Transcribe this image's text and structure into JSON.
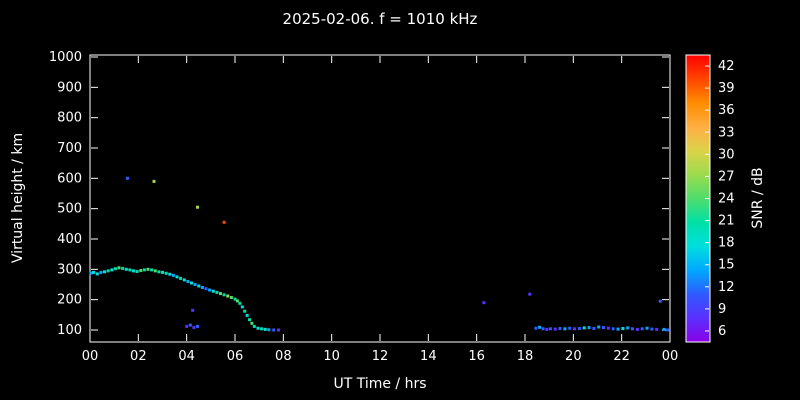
{
  "title": "2025-02-06. f = 1010 kHz",
  "chart_data": {
    "type": "scatter",
    "title": "2025-02-06. f = 1010 kHz",
    "xlabel": "UT Time / hrs",
    "ylabel": "Virtual height / km",
    "x_range_hours": [
      0,
      24
    ],
    "y_range_km": [
      100,
      1000
    ],
    "grid": false,
    "background": "#000000",
    "axis_color": "#ffffff",
    "x_tick_labels": [
      "00",
      "02",
      "04",
      "06",
      "08",
      "10",
      "12",
      "14",
      "16",
      "18",
      "20",
      "22",
      "00"
    ],
    "x_tick_values": [
      0,
      2,
      4,
      6,
      8,
      10,
      12,
      14,
      16,
      18,
      20,
      22,
      24
    ],
    "y_tick_values": [
      100,
      200,
      300,
      400,
      500,
      600,
      700,
      800,
      900,
      1000
    ],
    "colorbar": {
      "label": "SNR / dB",
      "tick_values": [
        42,
        39,
        36,
        33,
        30,
        27,
        24,
        21,
        18,
        15,
        12,
        9,
        6
      ],
      "range": [
        4.5,
        43.5
      ],
      "stops": [
        {
          "snr": 42,
          "color": "#ff0000"
        },
        {
          "snr": 39,
          "color": "#ff4500"
        },
        {
          "snr": 36,
          "color": "#ff8c00"
        },
        {
          "snr": 33,
          "color": "#ffae42"
        },
        {
          "snr": 30,
          "color": "#ddd24a"
        },
        {
          "snr": 27,
          "color": "#9bdb4d"
        },
        {
          "snr": 24,
          "color": "#4fdd6b"
        },
        {
          "snr": 21,
          "color": "#00e0a6"
        },
        {
          "snr": 18,
          "color": "#00dede"
        },
        {
          "snr": 15,
          "color": "#00a8ff"
        },
        {
          "snr": 12,
          "color": "#2f5bff"
        },
        {
          "snr": 9,
          "color": "#5a30ff"
        },
        {
          "snr": 6,
          "color": "#8a00e6"
        }
      ]
    },
    "points": [
      [
        0.05,
        288,
        15
      ],
      [
        0.15,
        290,
        18
      ],
      [
        0.3,
        285,
        18
      ],
      [
        0.45,
        290,
        15
      ],
      [
        0.6,
        292,
        18
      ],
      [
        0.75,
        295,
        21
      ],
      [
        0.9,
        298,
        18
      ],
      [
        1.05,
        302,
        21
      ],
      [
        1.2,
        305,
        24
      ],
      [
        1.35,
        303,
        21
      ],
      [
        1.5,
        300,
        18
      ],
      [
        1.55,
        600,
        12
      ],
      [
        1.65,
        298,
        21
      ],
      [
        1.8,
        295,
        18
      ],
      [
        1.95,
        293,
        21
      ],
      [
        2.1,
        296,
        24
      ],
      [
        2.25,
        298,
        21
      ],
      [
        2.4,
        300,
        24
      ],
      [
        2.55,
        298,
        21
      ],
      [
        2.65,
        590,
        27
      ],
      [
        2.7,
        295,
        24
      ],
      [
        2.85,
        292,
        21
      ],
      [
        3.0,
        290,
        18
      ],
      [
        3.15,
        287,
        21
      ],
      [
        3.3,
        284,
        18
      ],
      [
        3.45,
        280,
        15
      ],
      [
        3.6,
        275,
        18
      ],
      [
        3.75,
        270,
        21
      ],
      [
        3.9,
        265,
        18
      ],
      [
        4.05,
        260,
        15
      ],
      [
        4.2,
        255,
        18
      ],
      [
        4.35,
        250,
        15
      ],
      [
        4.45,
        505,
        27
      ],
      [
        4.5,
        245,
        18
      ],
      [
        4.65,
        240,
        15
      ],
      [
        4.8,
        236,
        12
      ],
      [
        4.95,
        232,
        15
      ],
      [
        5.1,
        228,
        18
      ],
      [
        5.25,
        224,
        21
      ],
      [
        5.4,
        220,
        24
      ],
      [
        5.55,
        455,
        39
      ],
      [
        5.55,
        216,
        21
      ],
      [
        5.7,
        212,
        27
      ],
      [
        5.85,
        207,
        24
      ],
      [
        6.0,
        202,
        21
      ],
      [
        6.1,
        196,
        24
      ],
      [
        6.2,
        188,
        21
      ],
      [
        6.3,
        176,
        18
      ],
      [
        6.4,
        162,
        21
      ],
      [
        6.5,
        148,
        18
      ],
      [
        6.6,
        134,
        21
      ],
      [
        6.7,
        122,
        24
      ],
      [
        6.8,
        112,
        21
      ],
      [
        6.95,
        106,
        18
      ],
      [
        7.1,
        104,
        21
      ],
      [
        7.25,
        102,
        18
      ],
      [
        7.4,
        101,
        15
      ],
      [
        7.6,
        100,
        12
      ],
      [
        7.8,
        100,
        9
      ],
      [
        4.0,
        112,
        9
      ],
      [
        4.15,
        116,
        12
      ],
      [
        4.3,
        108,
        9
      ],
      [
        4.45,
        112,
        12
      ],
      [
        4.25,
        165,
        9
      ],
      [
        16.3,
        190,
        9
      ],
      [
        18.2,
        218,
        9
      ],
      [
        18.45,
        106,
        12
      ],
      [
        18.6,
        109,
        15
      ],
      [
        18.75,
        104,
        12
      ],
      [
        18.9,
        102,
        9
      ],
      [
        19.05,
        104,
        12
      ],
      [
        19.25,
        103,
        9
      ],
      [
        19.45,
        105,
        12
      ],
      [
        19.65,
        104,
        15
      ],
      [
        19.85,
        106,
        12
      ],
      [
        20.05,
        104,
        9
      ],
      [
        20.25,
        105,
        12
      ],
      [
        20.45,
        107,
        18
      ],
      [
        20.65,
        108,
        15
      ],
      [
        20.85,
        105,
        12
      ],
      [
        21.05,
        110,
        15
      ],
      [
        21.25,
        108,
        12
      ],
      [
        21.45,
        106,
        9
      ],
      [
        21.65,
        104,
        12
      ],
      [
        21.85,
        103,
        15
      ],
      [
        22.05,
        105,
        18
      ],
      [
        22.25,
        107,
        15
      ],
      [
        22.45,
        104,
        12
      ],
      [
        22.65,
        102,
        9
      ],
      [
        22.85,
        104,
        12
      ],
      [
        23.05,
        106,
        15
      ],
      [
        23.25,
        103,
        12
      ],
      [
        23.45,
        102,
        9
      ],
      [
        23.6,
        195,
        12
      ],
      [
        23.75,
        102,
        15
      ],
      [
        23.9,
        100,
        12
      ]
    ]
  }
}
